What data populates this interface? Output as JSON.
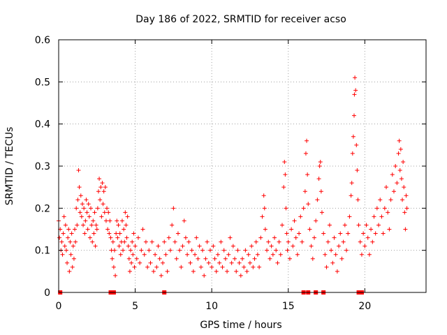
{
  "chart_data": {
    "type": "scatter",
    "title": "Day 186 of 2022, SRMTID for receiver acso",
    "xlabel": "GPS time / hours",
    "ylabel": "SRMTID / TECUs",
    "xlim": [
      0,
      24
    ],
    "ylim": [
      0,
      0.6
    ],
    "xticks": [
      0,
      5,
      10,
      15,
      20
    ],
    "yticks": [
      0,
      0.1,
      0.2,
      0.3,
      0.4,
      0.5,
      0.6
    ],
    "xtick_labels": [
      "0",
      "5",
      "10",
      "15",
      "20"
    ],
    "ytick_labels": [
      "0",
      "0.1",
      "0.2",
      "0.3",
      "0.4",
      "0.5",
      "0.6"
    ],
    "grid": true,
    "legend": "none",
    "marker": "plus",
    "color": "#ff0000",
    "series": [
      {
        "name": "SRMTID",
        "points": [
          [
            0.0,
            0.17
          ],
          [
            0.05,
            0.13
          ],
          [
            0.1,
            0.15
          ],
          [
            0.15,
            0.1
          ],
          [
            0.2,
            0.12
          ],
          [
            0.25,
            0.09
          ],
          [
            0.3,
            0.14
          ],
          [
            0.35,
            0.18
          ],
          [
            0.4,
            0.11
          ],
          [
            0.45,
            0.16
          ],
          [
            0.5,
            0.1
          ],
          [
            0.55,
            0.07
          ],
          [
            0.6,
            0.13
          ],
          [
            0.65,
            0.15
          ],
          [
            0.7,
            0.05
          ],
          [
            0.75,
            0.12
          ],
          [
            0.8,
            0.09
          ],
          [
            0.85,
            0.14
          ],
          [
            0.9,
            0.06
          ],
          [
            0.95,
            0.11
          ],
          [
            1.0,
            0.08
          ],
          [
            1.05,
            0.15
          ],
          [
            1.1,
            0.12
          ],
          [
            1.15,
            0.2
          ],
          [
            1.2,
            0.16
          ],
          [
            1.25,
            0.22
          ],
          [
            1.3,
            0.29
          ],
          [
            1.35,
            0.25
          ],
          [
            1.4,
            0.19
          ],
          [
            1.45,
            0.23
          ],
          [
            1.5,
            0.18
          ],
          [
            1.55,
            0.21
          ],
          [
            1.6,
            0.16
          ],
          [
            1.65,
            0.2
          ],
          [
            1.7,
            0.14
          ],
          [
            1.75,
            0.17
          ],
          [
            1.8,
            0.22
          ],
          [
            1.85,
            0.19
          ],
          [
            1.9,
            0.15
          ],
          [
            1.95,
            0.21
          ],
          [
            2.0,
            0.18
          ],
          [
            2.05,
            0.13
          ],
          [
            2.1,
            0.2
          ],
          [
            2.15,
            0.16
          ],
          [
            2.2,
            0.12
          ],
          [
            2.25,
            0.17
          ],
          [
            2.3,
            0.14
          ],
          [
            2.35,
            0.19
          ],
          [
            2.4,
            0.11
          ],
          [
            2.45,
            0.16
          ],
          [
            2.5,
            0.15
          ],
          [
            2.55,
            0.2
          ],
          [
            2.6,
            0.24
          ],
          [
            2.65,
            0.27
          ],
          [
            2.7,
            0.22
          ],
          [
            2.75,
            0.25
          ],
          [
            2.8,
            0.18
          ],
          [
            2.85,
            0.26
          ],
          [
            2.9,
            0.21
          ],
          [
            2.95,
            0.24
          ],
          [
            3.0,
            0.19
          ],
          [
            3.05,
            0.25
          ],
          [
            3.1,
            0.17
          ],
          [
            3.15,
            0.2
          ],
          [
            3.2,
            0.15
          ],
          [
            3.25,
            0.19
          ],
          [
            3.3,
            0.14
          ],
          [
            3.35,
            0.17
          ],
          [
            3.4,
            0.13
          ],
          [
            3.45,
            0.1
          ],
          [
            3.5,
            0.08
          ],
          [
            3.55,
            0.12
          ],
          [
            3.6,
            0.06
          ],
          [
            3.65,
            0.1
          ],
          [
            3.7,
            0.04
          ],
          [
            3.75,
            0.14
          ],
          [
            3.8,
            0.17
          ],
          [
            3.85,
            0.13
          ],
          [
            3.9,
            0.16
          ],
          [
            3.95,
            0.11
          ],
          [
            4.0,
            0.14
          ],
          [
            4.05,
            0.09
          ],
          [
            4.1,
            0.12
          ],
          [
            4.15,
            0.17
          ],
          [
            4.2,
            0.1
          ],
          [
            4.25,
            0.15
          ],
          [
            4.3,
            0.12
          ],
          [
            4.35,
            0.19
          ],
          [
            4.4,
            0.16
          ],
          [
            4.45,
            0.13
          ],
          [
            4.5,
            0.18
          ],
          [
            4.55,
            0.11
          ],
          [
            4.6,
            0.08
          ],
          [
            4.65,
            0.05
          ],
          [
            4.7,
            0.1
          ],
          [
            4.75,
            0.07
          ],
          [
            4.8,
            0.12
          ],
          [
            4.85,
            0.09
          ],
          [
            4.9,
            0.14
          ],
          [
            4.95,
            0.06
          ],
          [
            5.0,
            0.11
          ],
          [
            5.1,
            0.08
          ],
          [
            5.2,
            0.13
          ],
          [
            5.3,
            0.07
          ],
          [
            5.4,
            0.1
          ],
          [
            5.5,
            0.15
          ],
          [
            5.6,
            0.09
          ],
          [
            5.7,
            0.12
          ],
          [
            5.8,
            0.06
          ],
          [
            5.9,
            0.1
          ],
          [
            6.0,
            0.07
          ],
          [
            6.1,
            0.12
          ],
          [
            6.2,
            0.05
          ],
          [
            6.3,
            0.09
          ],
          [
            6.4,
            0.06
          ],
          [
            6.5,
            0.11
          ],
          [
            6.6,
            0.08
          ],
          [
            6.7,
            0.04
          ],
          [
            6.8,
            0.07
          ],
          [
            6.9,
            0.12
          ],
          [
            7.0,
            0.09
          ],
          [
            7.1,
            0.05
          ],
          [
            7.2,
            0.13
          ],
          [
            7.3,
            0.1
          ],
          [
            7.4,
            0.16
          ],
          [
            7.5,
            0.2
          ],
          [
            7.6,
            0.12
          ],
          [
            7.7,
            0.08
          ],
          [
            7.8,
            0.14
          ],
          [
            7.9,
            0.1
          ],
          [
            8.0,
            0.06
          ],
          [
            8.1,
            0.11
          ],
          [
            8.2,
            0.17
          ],
          [
            8.3,
            0.13
          ],
          [
            8.4,
            0.09
          ],
          [
            8.5,
            0.12
          ],
          [
            8.6,
            0.07
          ],
          [
            8.7,
            0.1
          ],
          [
            8.8,
            0.05
          ],
          [
            8.9,
            0.09
          ],
          [
            9.0,
            0.13
          ],
          [
            9.1,
            0.08
          ],
          [
            9.2,
            0.11
          ],
          [
            9.3,
            0.06
          ],
          [
            9.4,
            0.1
          ],
          [
            9.5,
            0.04
          ],
          [
            9.6,
            0.08
          ],
          [
            9.7,
            0.12
          ],
          [
            9.8,
            0.07
          ],
          [
            9.9,
            0.1
          ],
          [
            10.0,
            0.06
          ],
          [
            10.1,
            0.11
          ],
          [
            10.2,
            0.08
          ],
          [
            10.3,
            0.05
          ],
          [
            10.4,
            0.09
          ],
          [
            10.5,
            0.07
          ],
          [
            10.6,
            0.12
          ],
          [
            10.7,
            0.06
          ],
          [
            10.8,
            0.1
          ],
          [
            10.9,
            0.08
          ],
          [
            11.0,
            0.05
          ],
          [
            11.1,
            0.09
          ],
          [
            11.2,
            0.13
          ],
          [
            11.3,
            0.07
          ],
          [
            11.4,
            0.11
          ],
          [
            11.5,
            0.08
          ],
          [
            11.6,
            0.05
          ],
          [
            11.7,
            0.1
          ],
          [
            11.8,
            0.07
          ],
          [
            11.9,
            0.04
          ],
          [
            12.0,
            0.08
          ],
          [
            12.1,
            0.06
          ],
          [
            12.2,
            0.1
          ],
          [
            12.3,
            0.05
          ],
          [
            12.4,
            0.09
          ],
          [
            12.5,
            0.07
          ],
          [
            12.6,
            0.11
          ],
          [
            12.7,
            0.06
          ],
          [
            12.8,
            0.08
          ],
          [
            12.9,
            0.12
          ],
          [
            13.0,
            0.09
          ],
          [
            13.1,
            0.06
          ],
          [
            13.2,
            0.13
          ],
          [
            13.3,
            0.18
          ],
          [
            13.4,
            0.23
          ],
          [
            13.45,
            0.2
          ],
          [
            13.5,
            0.15
          ],
          [
            13.6,
            0.1
          ],
          [
            13.7,
            0.12
          ],
          [
            13.8,
            0.08
          ],
          [
            13.9,
            0.11
          ],
          [
            14.0,
            0.09
          ],
          [
            14.1,
            0.13
          ],
          [
            14.2,
            0.1
          ],
          [
            14.3,
            0.07
          ],
          [
            14.4,
            0.12
          ],
          [
            14.5,
            0.09
          ],
          [
            14.6,
            0.16
          ],
          [
            14.7,
            0.25
          ],
          [
            14.75,
            0.31
          ],
          [
            14.8,
            0.28
          ],
          [
            14.85,
            0.2
          ],
          [
            14.9,
            0.14
          ],
          [
            14.95,
            0.1
          ],
          [
            15.0,
            0.12
          ],
          [
            15.1,
            0.08
          ],
          [
            15.2,
            0.15
          ],
          [
            15.3,
            0.11
          ],
          [
            15.4,
            0.17
          ],
          [
            15.5,
            0.13
          ],
          [
            15.6,
            0.09
          ],
          [
            15.7,
            0.14
          ],
          [
            15.8,
            0.18
          ],
          [
            15.9,
            0.12
          ],
          [
            16.0,
            0.2
          ],
          [
            16.1,
            0.24
          ],
          [
            16.15,
            0.33
          ],
          [
            16.2,
            0.36
          ],
          [
            16.25,
            0.28
          ],
          [
            16.3,
            0.21
          ],
          [
            16.4,
            0.15
          ],
          [
            16.5,
            0.11
          ],
          [
            16.6,
            0.08
          ],
          [
            16.7,
            0.13
          ],
          [
            16.8,
            0.17
          ],
          [
            16.9,
            0.22
          ],
          [
            17.0,
            0.27
          ],
          [
            17.05,
            0.3
          ],
          [
            17.1,
            0.31
          ],
          [
            17.15,
            0.24
          ],
          [
            17.2,
            0.19
          ],
          [
            17.3,
            0.14
          ],
          [
            17.4,
            0.09
          ],
          [
            17.5,
            0.06
          ],
          [
            17.6,
            0.12
          ],
          [
            17.7,
            0.16
          ],
          [
            17.8,
            0.1
          ],
          [
            17.9,
            0.07
          ],
          [
            18.0,
            0.13
          ],
          [
            18.1,
            0.09
          ],
          [
            18.2,
            0.05
          ],
          [
            18.3,
            0.11
          ],
          [
            18.4,
            0.14
          ],
          [
            18.5,
            0.08
          ],
          [
            18.6,
            0.12
          ],
          [
            18.7,
            0.16
          ],
          [
            18.8,
            0.1
          ],
          [
            18.9,
            0.14
          ],
          [
            19.0,
            0.18
          ],
          [
            19.1,
            0.23
          ],
          [
            19.15,
            0.26
          ],
          [
            19.2,
            0.33
          ],
          [
            19.25,
            0.37
          ],
          [
            19.3,
            0.42
          ],
          [
            19.32,
            0.47
          ],
          [
            19.35,
            0.51
          ],
          [
            19.4,
            0.48
          ],
          [
            19.45,
            0.35
          ],
          [
            19.5,
            0.29
          ],
          [
            19.55,
            0.22
          ],
          [
            19.6,
            0.16
          ],
          [
            19.7,
            0.12
          ],
          [
            19.8,
            0.09
          ],
          [
            19.9,
            0.14
          ],
          [
            20.0,
            0.11
          ],
          [
            20.1,
            0.16
          ],
          [
            20.2,
            0.13
          ],
          [
            20.3,
            0.09
          ],
          [
            20.4,
            0.15
          ],
          [
            20.5,
            0.12
          ],
          [
            20.6,
            0.18
          ],
          [
            20.7,
            0.14
          ],
          [
            20.8,
            0.2
          ],
          [
            20.9,
            0.16
          ],
          [
            21.0,
            0.22
          ],
          [
            21.1,
            0.18
          ],
          [
            21.2,
            0.14
          ],
          [
            21.3,
            0.2
          ],
          [
            21.4,
            0.25
          ],
          [
            21.5,
            0.19
          ],
          [
            21.6,
            0.15
          ],
          [
            21.7,
            0.22
          ],
          [
            21.8,
            0.28
          ],
          [
            21.9,
            0.24
          ],
          [
            22.0,
            0.3
          ],
          [
            22.1,
            0.26
          ],
          [
            22.2,
            0.33
          ],
          [
            22.25,
            0.36
          ],
          [
            22.3,
            0.29
          ],
          [
            22.35,
            0.34
          ],
          [
            22.4,
            0.27
          ],
          [
            22.45,
            0.22
          ],
          [
            22.5,
            0.31
          ],
          [
            22.55,
            0.25
          ],
          [
            22.6,
            0.19
          ],
          [
            22.65,
            0.15
          ],
          [
            22.7,
            0.23
          ],
          [
            22.75,
            0.2
          ]
        ]
      }
    ],
    "gap_markers_x": [
      0.1,
      3.4,
      3.6,
      6.9,
      16.0,
      16.3,
      16.8,
      17.3,
      19.6,
      19.8
    ]
  }
}
